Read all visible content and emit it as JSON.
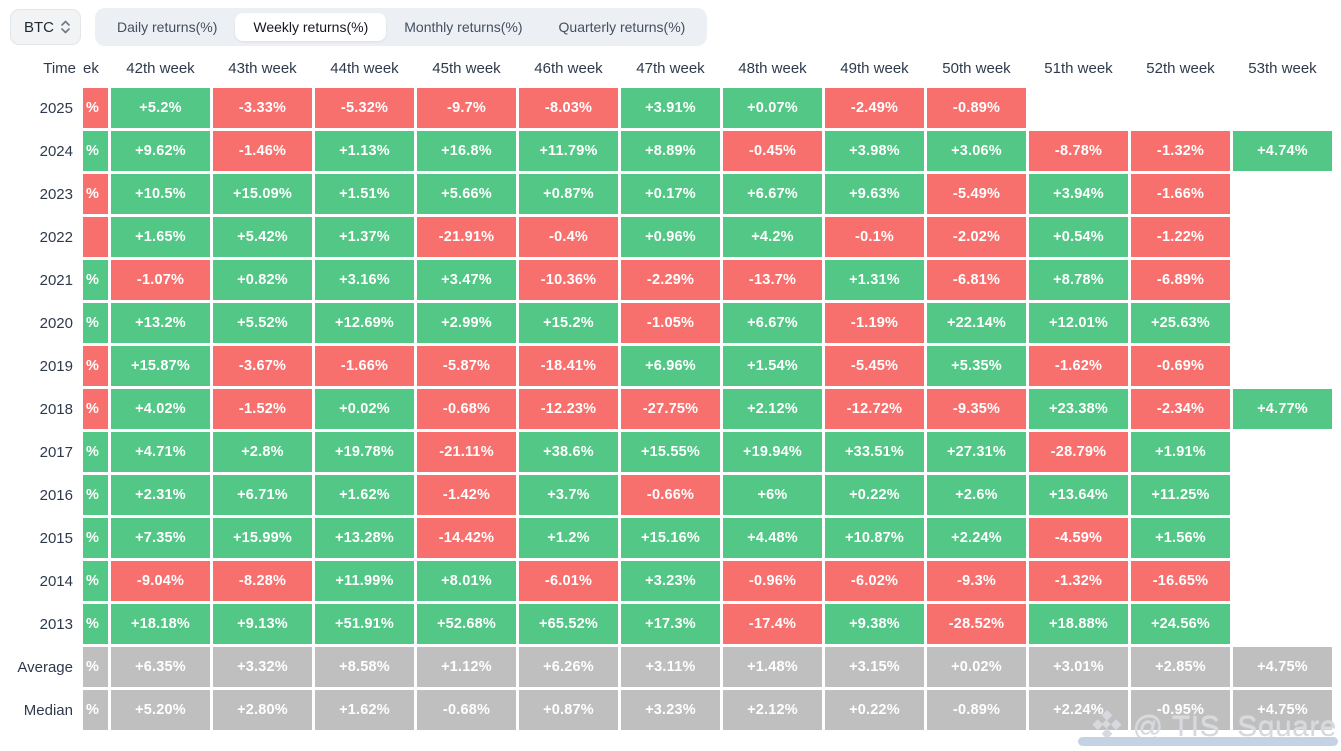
{
  "controls": {
    "symbol": {
      "value": "BTC"
    },
    "tabs": [
      {
        "id": "daily",
        "label": "Daily returns(%)",
        "active": false
      },
      {
        "id": "weekly",
        "label": "Weekly returns(%)",
        "active": true
      },
      {
        "id": "monthly",
        "label": "Monthly returns(%)",
        "active": false
      },
      {
        "id": "quarterly",
        "label": "Quarterly returns(%)",
        "active": false
      }
    ]
  },
  "colors": {
    "positive": "#52c786",
    "negative": "#f8706e",
    "neutral": "#bfbfbf",
    "scrollbar_thumb": "#c4d3e3"
  },
  "watermark": {
    "icon": "diamond-logo",
    "text": "@ TIS_Square"
  },
  "table": {
    "time_header": "Time",
    "clipped_first_column_header_fragment": "ek",
    "week_headers": [
      "42th week",
      "43th week",
      "44th week",
      "45th week",
      "46th week",
      "47th week",
      "48th week",
      "49th week",
      "50th week",
      "51th week",
      "52th week",
      "53th week"
    ],
    "legend": {
      "g": "positive green",
      "r": "negative red",
      "x": "neutral gray",
      "e": "empty"
    },
    "rows": [
      {
        "label": "2025",
        "clip": [
          "%",
          "r"
        ],
        "cells": [
          [
            "+5.2%",
            "g"
          ],
          [
            "-3.33%",
            "r"
          ],
          [
            "-5.32%",
            "r"
          ],
          [
            "-9.7%",
            "r"
          ],
          [
            "-8.03%",
            "r"
          ],
          [
            "+3.91%",
            "g"
          ],
          [
            "+0.07%",
            "g"
          ],
          [
            "-2.49%",
            "r"
          ],
          [
            "-0.89%",
            "r"
          ],
          [
            "",
            "e"
          ],
          [
            "",
            "e"
          ],
          [
            "",
            "e"
          ]
        ]
      },
      {
        "label": "2024",
        "clip": [
          "%",
          "g"
        ],
        "cells": [
          [
            "+9.62%",
            "g"
          ],
          [
            "-1.46%",
            "r"
          ],
          [
            "+1.13%",
            "g"
          ],
          [
            "+16.8%",
            "g"
          ],
          [
            "+11.79%",
            "g"
          ],
          [
            "+8.89%",
            "g"
          ],
          [
            "-0.45%",
            "r"
          ],
          [
            "+3.98%",
            "g"
          ],
          [
            "+3.06%",
            "g"
          ],
          [
            "-8.78%",
            "r"
          ],
          [
            "-1.32%",
            "r"
          ],
          [
            "+4.74%",
            "g"
          ]
        ]
      },
      {
        "label": "2023",
        "clip": [
          "%",
          "r"
        ],
        "cells": [
          [
            "+10.5%",
            "g"
          ],
          [
            "+15.09%",
            "g"
          ],
          [
            "+1.51%",
            "g"
          ],
          [
            "+5.66%",
            "g"
          ],
          [
            "+0.87%",
            "g"
          ],
          [
            "+0.17%",
            "g"
          ],
          [
            "+6.67%",
            "g"
          ],
          [
            "+9.63%",
            "g"
          ],
          [
            "-5.49%",
            "r"
          ],
          [
            "+3.94%",
            "g"
          ],
          [
            "-1.66%",
            "r"
          ],
          [
            "",
            "e"
          ]
        ]
      },
      {
        "label": "2022",
        "clip": [
          "",
          "r"
        ],
        "cells": [
          [
            "+1.65%",
            "g"
          ],
          [
            "+5.42%",
            "g"
          ],
          [
            "+1.37%",
            "g"
          ],
          [
            "-21.91%",
            "r"
          ],
          [
            "-0.4%",
            "r"
          ],
          [
            "+0.96%",
            "g"
          ],
          [
            "+4.2%",
            "g"
          ],
          [
            "-0.1%",
            "r"
          ],
          [
            "-2.02%",
            "r"
          ],
          [
            "+0.54%",
            "g"
          ],
          [
            "-1.22%",
            "r"
          ],
          [
            "",
            "e"
          ]
        ]
      },
      {
        "label": "2021",
        "clip": [
          "%",
          "g"
        ],
        "cells": [
          [
            "-1.07%",
            "r"
          ],
          [
            "+0.82%",
            "g"
          ],
          [
            "+3.16%",
            "g"
          ],
          [
            "+3.47%",
            "g"
          ],
          [
            "-10.36%",
            "r"
          ],
          [
            "-2.29%",
            "r"
          ],
          [
            "-13.7%",
            "r"
          ],
          [
            "+1.31%",
            "g"
          ],
          [
            "-6.81%",
            "r"
          ],
          [
            "+8.78%",
            "g"
          ],
          [
            "-6.89%",
            "r"
          ],
          [
            "",
            "e"
          ]
        ]
      },
      {
        "label": "2020",
        "clip": [
          "%",
          "g"
        ],
        "cells": [
          [
            "+13.2%",
            "g"
          ],
          [
            "+5.52%",
            "g"
          ],
          [
            "+12.69%",
            "g"
          ],
          [
            "+2.99%",
            "g"
          ],
          [
            "+15.2%",
            "g"
          ],
          [
            "-1.05%",
            "r"
          ],
          [
            "+6.67%",
            "g"
          ],
          [
            "-1.19%",
            "r"
          ],
          [
            "+22.14%",
            "g"
          ],
          [
            "+12.01%",
            "g"
          ],
          [
            "+25.63%",
            "g"
          ],
          [
            "",
            "e"
          ]
        ]
      },
      {
        "label": "2019",
        "clip": [
          "%",
          "r"
        ],
        "cells": [
          [
            "+15.87%",
            "g"
          ],
          [
            "-3.67%",
            "r"
          ],
          [
            "-1.66%",
            "r"
          ],
          [
            "-5.87%",
            "r"
          ],
          [
            "-18.41%",
            "r"
          ],
          [
            "+6.96%",
            "g"
          ],
          [
            "+1.54%",
            "g"
          ],
          [
            "-5.45%",
            "r"
          ],
          [
            "+5.35%",
            "g"
          ],
          [
            "-1.62%",
            "r"
          ],
          [
            "-0.69%",
            "r"
          ],
          [
            "",
            "e"
          ]
        ]
      },
      {
        "label": "2018",
        "clip": [
          "%",
          "r"
        ],
        "cells": [
          [
            "+4.02%",
            "g"
          ],
          [
            "-1.52%",
            "r"
          ],
          [
            "+0.02%",
            "g"
          ],
          [
            "-0.68%",
            "r"
          ],
          [
            "-12.23%",
            "r"
          ],
          [
            "-27.75%",
            "r"
          ],
          [
            "+2.12%",
            "g"
          ],
          [
            "-12.72%",
            "r"
          ],
          [
            "-9.35%",
            "r"
          ],
          [
            "+23.38%",
            "g"
          ],
          [
            "-2.34%",
            "r"
          ],
          [
            "+4.77%",
            "g"
          ]
        ]
      },
      {
        "label": "2017",
        "clip": [
          "%",
          "g"
        ],
        "cells": [
          [
            "+4.71%",
            "g"
          ],
          [
            "+2.8%",
            "g"
          ],
          [
            "+19.78%",
            "g"
          ],
          [
            "-21.11%",
            "r"
          ],
          [
            "+38.6%",
            "g"
          ],
          [
            "+15.55%",
            "g"
          ],
          [
            "+19.94%",
            "g"
          ],
          [
            "+33.51%",
            "g"
          ],
          [
            "+27.31%",
            "g"
          ],
          [
            "-28.79%",
            "r"
          ],
          [
            "+1.91%",
            "g"
          ],
          [
            "",
            "e"
          ]
        ]
      },
      {
        "label": "2016",
        "clip": [
          "%",
          "g"
        ],
        "cells": [
          [
            "+2.31%",
            "g"
          ],
          [
            "+6.71%",
            "g"
          ],
          [
            "+1.62%",
            "g"
          ],
          [
            "-1.42%",
            "r"
          ],
          [
            "+3.7%",
            "g"
          ],
          [
            "-0.66%",
            "r"
          ],
          [
            "+6%",
            "g"
          ],
          [
            "+0.22%",
            "g"
          ],
          [
            "+2.6%",
            "g"
          ],
          [
            "+13.64%",
            "g"
          ],
          [
            "+11.25%",
            "g"
          ],
          [
            "",
            "e"
          ]
        ]
      },
      {
        "label": "2015",
        "clip": [
          "%",
          "g"
        ],
        "cells": [
          [
            "+7.35%",
            "g"
          ],
          [
            "+15.99%",
            "g"
          ],
          [
            "+13.28%",
            "g"
          ],
          [
            "-14.42%",
            "r"
          ],
          [
            "+1.2%",
            "g"
          ],
          [
            "+15.16%",
            "g"
          ],
          [
            "+4.48%",
            "g"
          ],
          [
            "+10.87%",
            "g"
          ],
          [
            "+2.24%",
            "g"
          ],
          [
            "-4.59%",
            "r"
          ],
          [
            "+1.56%",
            "g"
          ],
          [
            "",
            "e"
          ]
        ]
      },
      {
        "label": "2014",
        "clip": [
          "%",
          "g"
        ],
        "cells": [
          [
            "-9.04%",
            "r"
          ],
          [
            "-8.28%",
            "r"
          ],
          [
            "+11.99%",
            "g"
          ],
          [
            "+8.01%",
            "g"
          ],
          [
            "-6.01%",
            "r"
          ],
          [
            "+3.23%",
            "g"
          ],
          [
            "-0.96%",
            "r"
          ],
          [
            "-6.02%",
            "r"
          ],
          [
            "-9.3%",
            "r"
          ],
          [
            "-1.32%",
            "r"
          ],
          [
            "-16.65%",
            "r"
          ],
          [
            "",
            "e"
          ]
        ]
      },
      {
        "label": "2013",
        "clip": [
          "%",
          "g"
        ],
        "cells": [
          [
            "+18.18%",
            "g"
          ],
          [
            "+9.13%",
            "g"
          ],
          [
            "+51.91%",
            "g"
          ],
          [
            "+52.68%",
            "g"
          ],
          [
            "+65.52%",
            "g"
          ],
          [
            "+17.3%",
            "g"
          ],
          [
            "-17.4%",
            "r"
          ],
          [
            "+9.38%",
            "g"
          ],
          [
            "-28.52%",
            "r"
          ],
          [
            "+18.88%",
            "g"
          ],
          [
            "+24.56%",
            "g"
          ],
          [
            "",
            "e"
          ]
        ]
      },
      {
        "label": "Average",
        "clip": [
          "%",
          "x"
        ],
        "cells": [
          [
            "+6.35%",
            "x"
          ],
          [
            "+3.32%",
            "x"
          ],
          [
            "+8.58%",
            "x"
          ],
          [
            "+1.12%",
            "x"
          ],
          [
            "+6.26%",
            "x"
          ],
          [
            "+3.11%",
            "x"
          ],
          [
            "+1.48%",
            "x"
          ],
          [
            "+3.15%",
            "x"
          ],
          [
            "+0.02%",
            "x"
          ],
          [
            "+3.01%",
            "x"
          ],
          [
            "+2.85%",
            "x"
          ],
          [
            "+4.75%",
            "x"
          ]
        ]
      },
      {
        "label": "Median",
        "clip": [
          "%",
          "x"
        ],
        "cells": [
          [
            "+5.20%",
            "x"
          ],
          [
            "+2.80%",
            "x"
          ],
          [
            "+1.62%",
            "x"
          ],
          [
            "-0.68%",
            "x"
          ],
          [
            "+0.87%",
            "x"
          ],
          [
            "+3.23%",
            "x"
          ],
          [
            "+2.12%",
            "x"
          ],
          [
            "+0.22%",
            "x"
          ],
          [
            "-0.89%",
            "x"
          ],
          [
            "+2.24%",
            "x"
          ],
          [
            "-0.95%",
            "x"
          ],
          [
            "+4.75%",
            "x"
          ]
        ]
      }
    ]
  }
}
